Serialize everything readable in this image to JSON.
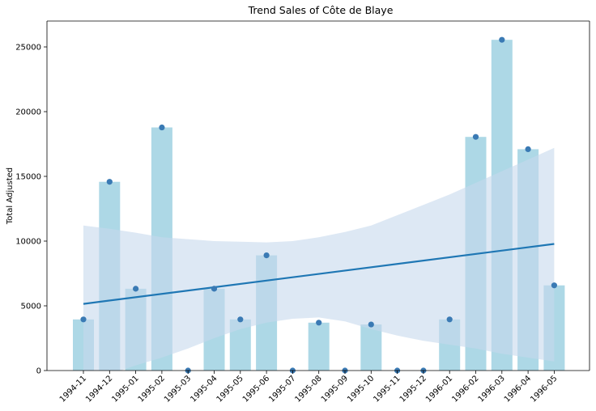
{
  "chart_data": {
    "type": "bar",
    "title": "Trend Sales of Côte de Blaye",
    "xlabel": "",
    "ylabel": "Total Adjusted",
    "categories": [
      "1994-11",
      "1994-12",
      "1995-01",
      "1995-02",
      "1995-03",
      "1995-04",
      "1995-05",
      "1995-06",
      "1995-07",
      "1995-08",
      "1995-09",
      "1995-10",
      "1995-11",
      "1995-12",
      "1996-01",
      "1996-02",
      "1996-03",
      "1996-04",
      "1996-05"
    ],
    "values": [
      3950,
      14580,
      6320,
      18780,
      0,
      6320,
      3950,
      8900,
      0,
      3700,
      0,
      3560,
      0,
      0,
      3950,
      18050,
      25550,
      17100,
      6580
    ],
    "yticks": [
      0,
      5000,
      10000,
      15000,
      20000,
      25000
    ],
    "ylim": [
      0,
      27000
    ],
    "trend": {
      "start": 5150,
      "end": 9780
    },
    "ci_upper": [
      11200,
      10950,
      10650,
      10300,
      10150,
      10000,
      9950,
      9900,
      10000,
      10300,
      10700,
      11200,
      12000,
      12800,
      13600,
      14500,
      15400,
      16300,
      17200
    ],
    "ci_lower": [
      -900,
      -300,
      400,
      1000,
      1700,
      2500,
      3200,
      3700,
      4000,
      4100,
      3800,
      3200,
      2700,
      2300,
      2000,
      1700,
      1300,
      1000,
      700
    ],
    "colors": {
      "bar": "#add8e6",
      "line": "#1f77b4",
      "band": "#c6d8ec",
      "point": "#3a7ab4"
    }
  }
}
